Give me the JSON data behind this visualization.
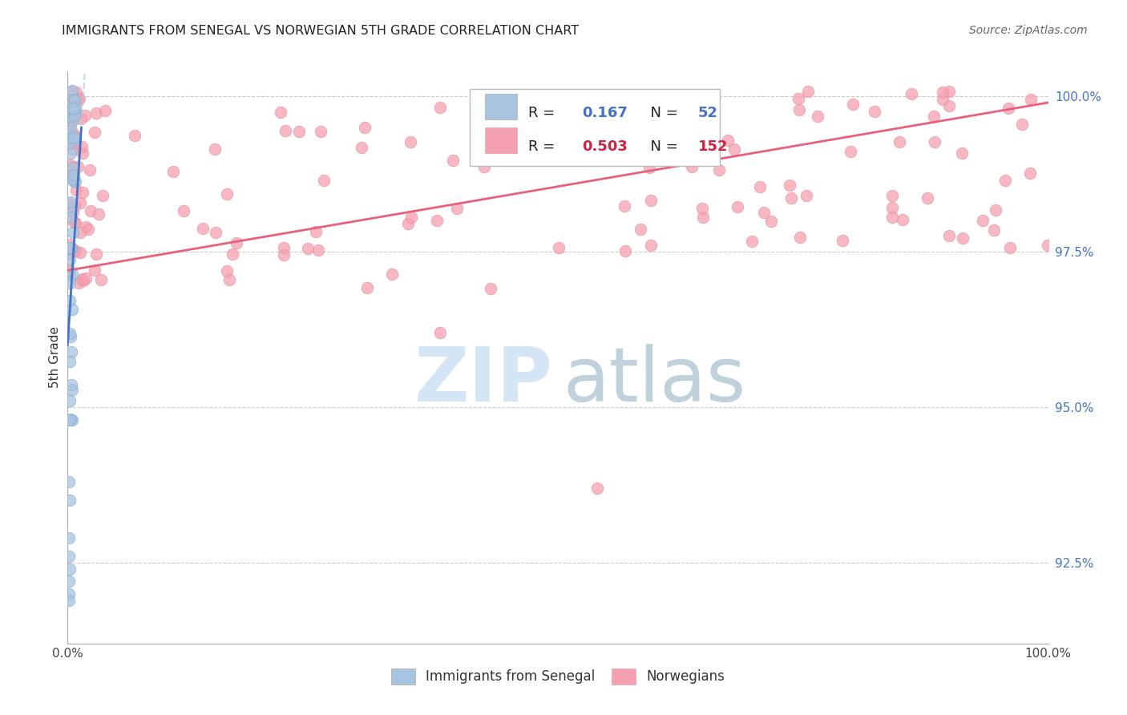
{
  "title": "IMMIGRANTS FROM SENEGAL VS NORWEGIAN 5TH GRADE CORRELATION CHART",
  "source": "Source: ZipAtlas.com",
  "ylabel": "5th Grade",
  "ytick_labels": [
    "100.0%",
    "97.5%",
    "95.0%",
    "92.5%"
  ],
  "ytick_values": [
    1.0,
    0.975,
    0.95,
    0.925
  ],
  "xlim": [
    0.0,
    1.0
  ],
  "ylim": [
    0.912,
    1.004
  ],
  "legend_blue_r": "0.167",
  "legend_blue_n": "52",
  "legend_pink_r": "0.503",
  "legend_pink_n": "152",
  "blue_color": "#a8c4e0",
  "pink_color": "#f5a0b0",
  "blue_line_color": "#4472c4",
  "pink_line_color": "#e8607a",
  "blue_dashed_color": "#b0cce8",
  "blue_scatter_edge": "#88aacc",
  "pink_scatter_edge": "#e890a0",
  "watermark_zip_color": "#d0e4f4",
  "watermark_atlas_color": "#b8ccd8"
}
